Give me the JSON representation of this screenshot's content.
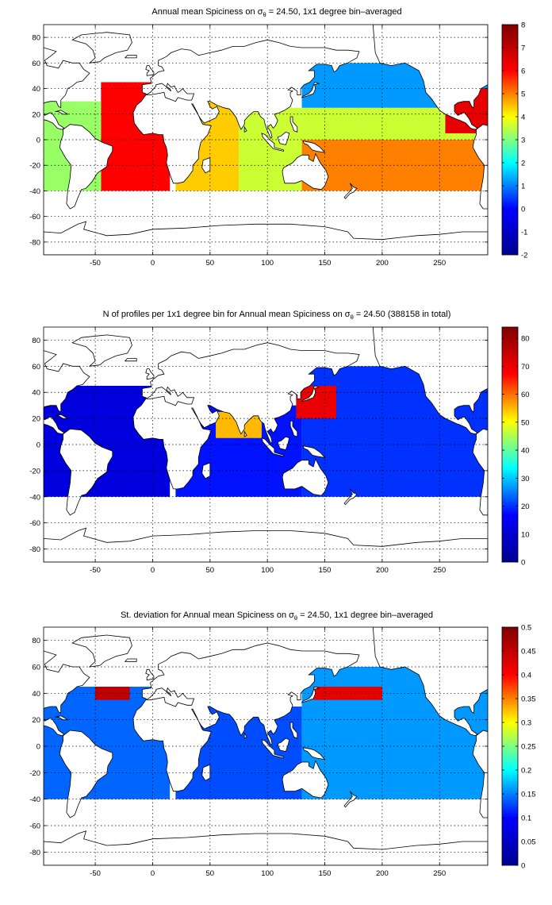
{
  "colors": {
    "jet_stops": [
      "#00008f",
      "#0000ff",
      "#00ffff",
      "#ffff00",
      "#ff0000",
      "#800000"
    ]
  },
  "chart_data": [
    {
      "type": "heatmap",
      "title_pre": "Annual mean Spiciness on ",
      "title_sym": "σ",
      "title_sub": "θ",
      "title_post": " = 24.50, 1x1 degree bin–averaged",
      "xlim": [
        -95,
        292
      ],
      "ylim": [
        -90,
        90
      ],
      "xticks": [
        -50,
        0,
        50,
        100,
        150,
        200,
        250
      ],
      "yticks": [
        -80,
        -60,
        -40,
        -20,
        0,
        20,
        40,
        60,
        80
      ],
      "x_tick_labels": [
        "-50",
        "0",
        "50",
        "100",
        "150",
        "200",
        "250"
      ],
      "y_tick_labels": [
        "-80",
        "-60",
        "-40",
        "-20",
        "0",
        "20",
        "40",
        "60",
        "80"
      ],
      "grid": true,
      "colorbar": {
        "range": [
          -2,
          8
        ],
        "ticks": [
          -2,
          -1,
          0,
          1,
          2,
          3,
          4,
          5,
          6,
          7,
          8
        ],
        "tick_labels": [
          "-2",
          "-1",
          "0",
          "1",
          "2",
          "3",
          "4",
          "5",
          "6",
          "7",
          "8"
        ]
      },
      "field": [
        {
          "x": [
            -45,
            15
          ],
          "y": [
            -40,
            45
          ],
          "value": 6.0
        },
        {
          "x": [
            -95,
            -45
          ],
          "y": [
            -40,
            30
          ],
          "value": 3.2
        },
        {
          "x": [
            20,
            80
          ],
          "y": [
            -40,
            30
          ],
          "value": 4.4
        },
        {
          "x": [
            75,
            130
          ],
          "y": [
            -40,
            25
          ],
          "value": 3.6
        },
        {
          "x": [
            130,
            292
          ],
          "y": [
            -40,
            0
          ],
          "value": 5.0
        },
        {
          "x": [
            130,
            292
          ],
          "y": [
            0,
            25
          ],
          "value": 3.6
        },
        {
          "x": [
            130,
            292
          ],
          "y": [
            25,
            60
          ],
          "value": 1.2
        },
        {
          "x": [
            255,
            292
          ],
          "y": [
            5,
            40
          ],
          "value": 6.4
        }
      ]
    },
    {
      "type": "heatmap",
      "title_pre": "N of profiles per 1x1 degree bin for Annual mean Spiciness on ",
      "title_sym": "σ",
      "title_sub": "θ",
      "title_post": " = 24.50 (388158 in total)",
      "xlim": [
        -95,
        292
      ],
      "ylim": [
        -90,
        90
      ],
      "xticks": [
        -50,
        0,
        50,
        100,
        150,
        200,
        250
      ],
      "yticks": [
        -80,
        -60,
        -40,
        -20,
        0,
        20,
        40,
        60,
        80
      ],
      "x_tick_labels": [
        "-50",
        "0",
        "50",
        "100",
        "150",
        "200",
        "250"
      ],
      "y_tick_labels": [
        "-80",
        "-60",
        "-40",
        "-20",
        "0",
        "20",
        "40",
        "60",
        "80"
      ],
      "grid": true,
      "colorbar": {
        "range": [
          0,
          84
        ],
        "ticks": [
          0,
          10,
          20,
          30,
          40,
          50,
          60,
          70,
          80
        ],
        "tick_labels": [
          "0",
          "10",
          "20",
          "30",
          "40",
          "50",
          "60",
          "70",
          "80"
        ]
      },
      "field": [
        {
          "x": [
            -95,
            15
          ],
          "y": [
            -40,
            45
          ],
          "value": 12
        },
        {
          "x": [
            20,
            130
          ],
          "y": [
            -40,
            30
          ],
          "value": 18
        },
        {
          "x": [
            130,
            292
          ],
          "y": [
            -40,
            60
          ],
          "value": 20
        },
        {
          "x": [
            125,
            160
          ],
          "y": [
            20,
            45
          ],
          "value": 70
        },
        {
          "x": [
            55,
            95
          ],
          "y": [
            5,
            25
          ],
          "value": 55
        }
      ]
    },
    {
      "type": "heatmap",
      "title_pre": "St. deviation for Annual mean Spiciness on ",
      "title_sym": "σ",
      "title_sub": "θ",
      "title_post": " = 24.50, 1x1 degree bin–averaged",
      "xlim": [
        -95,
        292
      ],
      "ylim": [
        -90,
        90
      ],
      "xticks": [
        -50,
        0,
        50,
        100,
        150,
        200,
        250
      ],
      "yticks": [
        -80,
        -60,
        -40,
        -20,
        0,
        20,
        40,
        60,
        80
      ],
      "x_tick_labels": [
        "-50",
        "0",
        "50",
        "100",
        "150",
        "200",
        "250"
      ],
      "y_tick_labels": [
        "-80",
        "-60",
        "-40",
        "-20",
        "0",
        "20",
        "40",
        "60",
        "80"
      ],
      "grid": true,
      "colorbar": {
        "range": [
          0,
          0.5
        ],
        "ticks": [
          0,
          0.05,
          0.1,
          0.15,
          0.2,
          0.25,
          0.3,
          0.35,
          0.4,
          0.45,
          0.5
        ],
        "tick_labels": [
          "0",
          "0.05",
          "0.1",
          "0.15",
          "0.2",
          "0.25",
          "0.3",
          "0.35",
          "0.4",
          "0.45",
          "0.5"
        ]
      },
      "field": [
        {
          "x": [
            -95,
            15
          ],
          "y": [
            -40,
            45
          ],
          "value": 0.14
        },
        {
          "x": [
            20,
            130
          ],
          "y": [
            -40,
            30
          ],
          "value": 0.13
        },
        {
          "x": [
            130,
            292
          ],
          "y": [
            -40,
            60
          ],
          "value": 0.16
        },
        {
          "x": [
            -50,
            -20
          ],
          "y": [
            35,
            45
          ],
          "value": 0.45
        },
        {
          "x": [
            140,
            200
          ],
          "y": [
            35,
            45
          ],
          "value": 0.42
        }
      ]
    }
  ]
}
